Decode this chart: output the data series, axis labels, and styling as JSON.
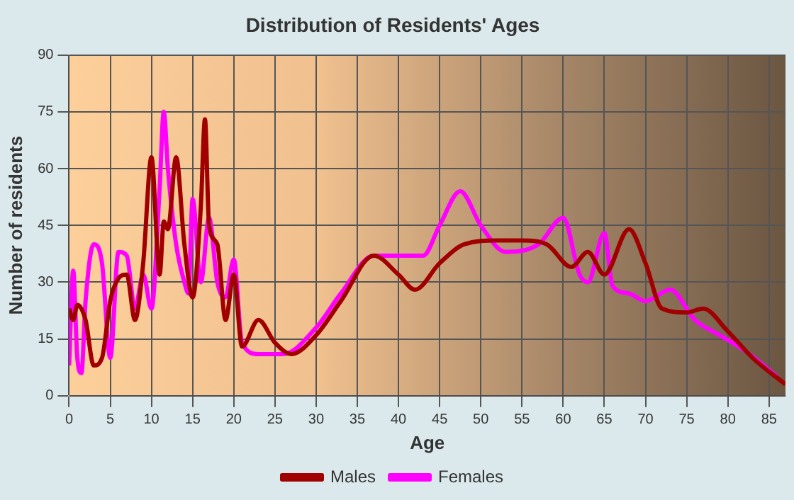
{
  "chart_data": {
    "type": "line",
    "title": "Distribution of Residents' Ages",
    "xlabel": "Age",
    "ylabel": "Number of residents",
    "xlim": [
      0,
      87
    ],
    "xticks": [
      0,
      5,
      10,
      15,
      20,
      25,
      30,
      35,
      40,
      45,
      50,
      55,
      60,
      65,
      70,
      75,
      80,
      85
    ],
    "ylim": [
      0,
      90
    ],
    "yticks": [
      0,
      15,
      30,
      45,
      60,
      75,
      90
    ],
    "grid": true,
    "legend": "bottom",
    "marker": "none",
    "line_style": "solid",
    "series": [
      {
        "name": "Males",
        "color": "#a00000",
        "x": [
          0,
          0.5,
          1,
          2,
          3,
          4,
          5,
          6,
          7,
          8,
          9,
          10,
          11,
          11.5,
          12,
          13,
          14,
          15,
          16,
          16.5,
          17,
          18,
          19,
          20,
          21,
          23,
          25,
          27,
          30,
          33,
          37,
          40,
          42,
          45,
          48,
          52,
          55,
          58,
          61,
          63,
          65,
          68,
          70,
          72,
          75,
          77,
          80,
          83,
          87
        ],
        "values": [
          23,
          20,
          24,
          20,
          8,
          10,
          25,
          31,
          32,
          20,
          35,
          63,
          32,
          46,
          44,
          63,
          40,
          26,
          50,
          73,
          45,
          40,
          20,
          32,
          13,
          20,
          14,
          11,
          16,
          25,
          37,
          32,
          28,
          35,
          40,
          41,
          41,
          40,
          34,
          38,
          32,
          44,
          35,
          23,
          22,
          23,
          17,
          10,
          3
        ]
      },
      {
        "name": "Females",
        "color": "#ff00ff",
        "x": [
          0,
          0.5,
          1,
          1.5,
          2,
          3,
          4,
          5,
          6,
          7,
          8,
          9,
          10,
          11,
          11.5,
          12,
          13,
          14,
          14.5,
          15,
          16,
          17,
          18,
          19,
          20,
          21,
          23,
          26,
          30,
          33,
          37,
          40,
          43,
          45,
          47.5,
          50,
          53,
          57,
          60,
          62,
          63,
          65,
          66,
          68,
          70,
          73,
          76,
          79,
          82,
          86
        ],
        "values": [
          8,
          33,
          10,
          6,
          25,
          40,
          35,
          10,
          38,
          37,
          23,
          32,
          23,
          55,
          75,
          60,
          40,
          30,
          27,
          52,
          30,
          47,
          30,
          26,
          36,
          14,
          11,
          11,
          18,
          27,
          37,
          37,
          37,
          45,
          54,
          45,
          38,
          40,
          47,
          32,
          30,
          43,
          29,
          27,
          25,
          28,
          20,
          16,
          12,
          5
        ]
      }
    ]
  }
}
